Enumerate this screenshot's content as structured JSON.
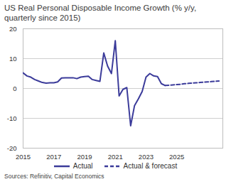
{
  "chart_data": {
    "type": "line",
    "title": "US Real Personal Disposable Income Growth (% y/y, quarterly since 2015)",
    "source": "Sources: Refinitiv, Capital Economics",
    "x": [
      2015,
      2015.25,
      2015.5,
      2015.75,
      2016,
      2016.25,
      2016.5,
      2016.75,
      2017,
      2017.25,
      2017.5,
      2017.75,
      2018,
      2018.25,
      2018.5,
      2018.75,
      2019,
      2019.25,
      2019.5,
      2019.75,
      2020,
      2020.25,
      2020.5,
      2020.75,
      2021,
      2021.25,
      2021.5,
      2021.75,
      2022,
      2022.25,
      2022.5,
      2022.75,
      2023,
      2023.25,
      2023.5,
      2023.75,
      2024,
      2024.25,
      2024.5,
      2024.75,
      2025,
      2025.25,
      2025.5,
      2025.75,
      2026,
      2026.25,
      2026.5,
      2026.75,
      2027,
      2027.25,
      2027.5,
      2027.75
    ],
    "series": [
      {
        "name": "Actual",
        "color": "#3b3b9a",
        "line_style": "solid",
        "values": [
          5.2,
          4.2,
          3.8,
          3.0,
          2.5,
          2.0,
          1.8,
          1.9,
          1.9,
          2.2,
          3.5,
          3.6,
          3.6,
          3.6,
          3.3,
          3.8,
          4.0,
          4.1,
          3.0,
          2.7,
          2.4,
          11.9,
          7.5,
          5.0,
          16.0,
          -2.5,
          -0.3,
          0.3,
          -12.5,
          -5.8,
          -3.5,
          -1.0,
          3.8,
          5.0,
          4.2,
          4.0,
          1.6,
          1.0,
          null,
          null,
          null,
          null,
          null,
          null,
          null,
          null,
          null,
          null,
          null,
          null,
          null,
          null
        ]
      },
      {
        "name": "Actual & forecast",
        "color": "#3b3b9a",
        "line_style": "dashed",
        "values": [
          null,
          null,
          null,
          null,
          null,
          null,
          null,
          null,
          null,
          null,
          null,
          null,
          null,
          null,
          null,
          null,
          null,
          null,
          null,
          null,
          null,
          null,
          null,
          null,
          null,
          null,
          null,
          null,
          null,
          null,
          null,
          null,
          null,
          null,
          null,
          null,
          null,
          1.0,
          1.1,
          1.2,
          1.3,
          1.4,
          1.6,
          1.7,
          1.8,
          1.9,
          2.0,
          2.1,
          2.2,
          2.3,
          2.4,
          2.5
        ]
      }
    ],
    "xlim": [
      2015,
      2028
    ],
    "xticks": [
      2015,
      2017,
      2019,
      2021,
      2023,
      2025
    ],
    "ylim": [
      -20,
      20
    ],
    "yticks": [
      -20,
      -10,
      0,
      10,
      20
    ],
    "grid": true,
    "legend": "bottom"
  }
}
